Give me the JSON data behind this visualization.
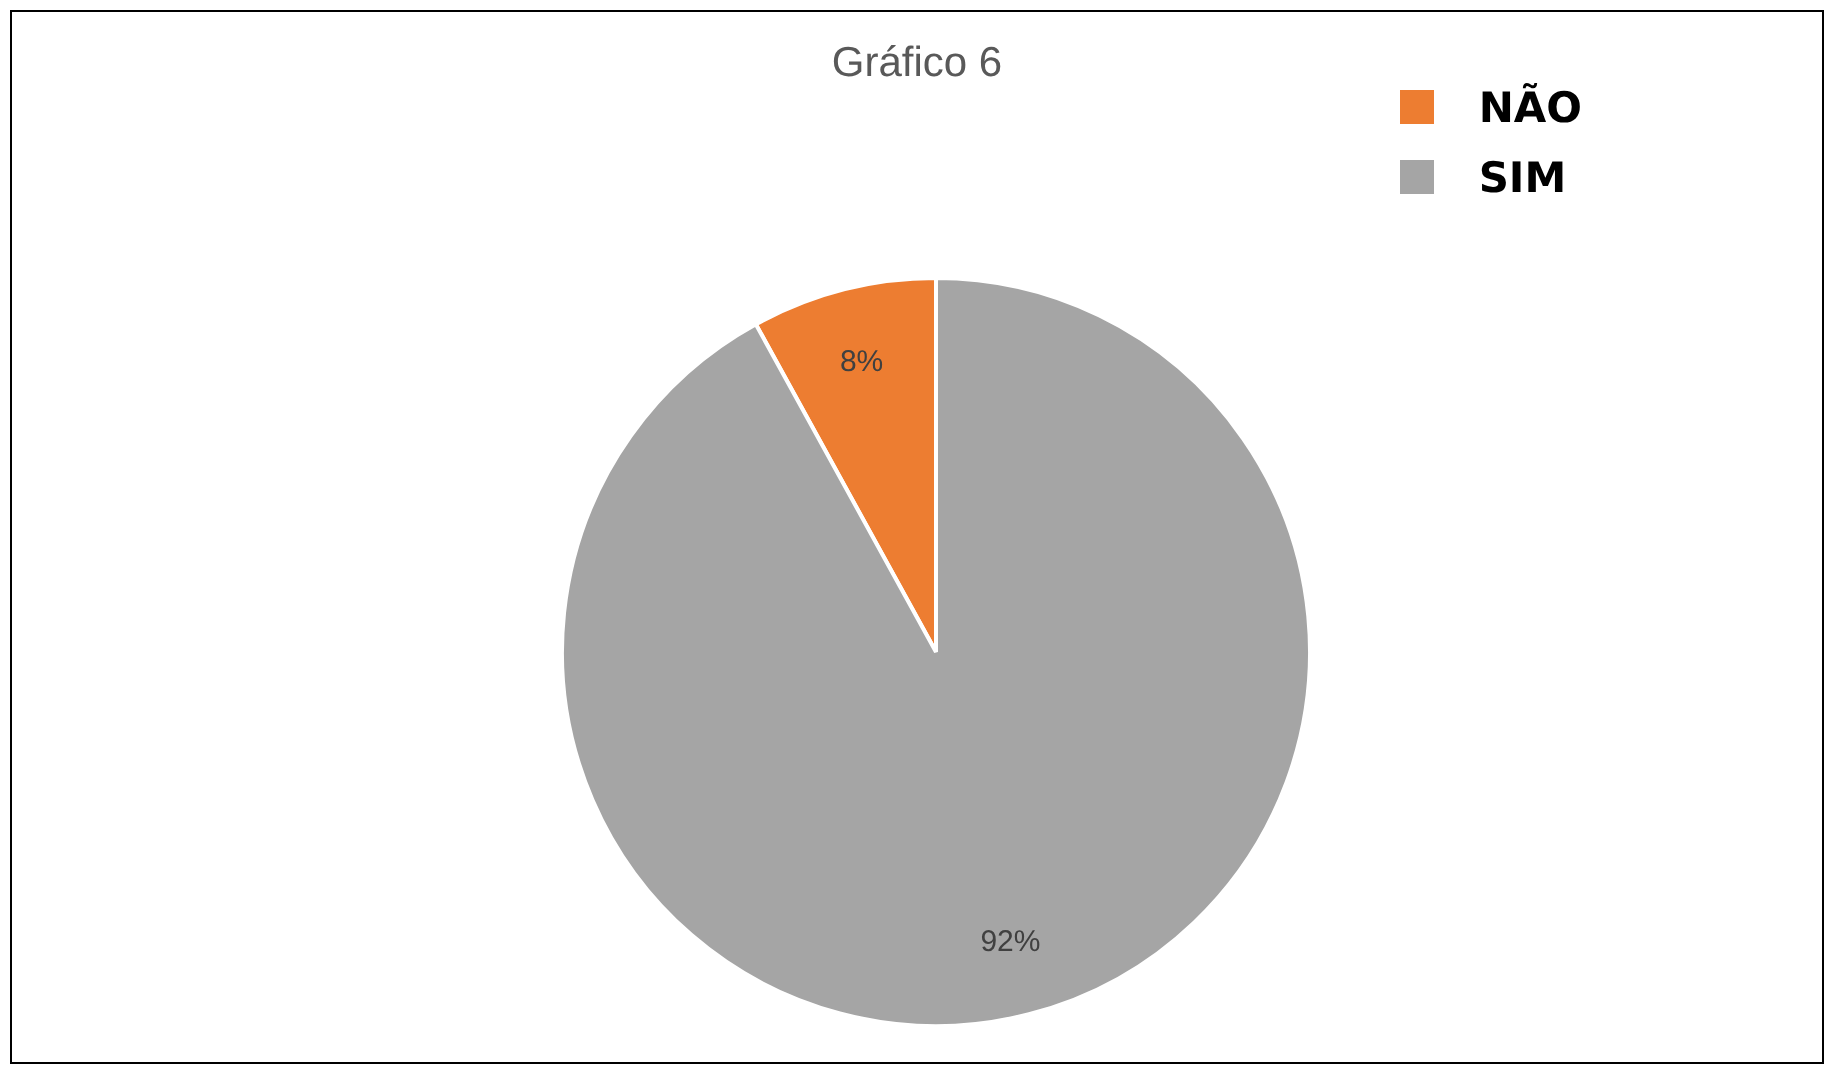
{
  "chart_data": {
    "type": "pie",
    "title": "Gráfico 6",
    "categories": [
      "NÃO",
      "SIM"
    ],
    "values": [
      8,
      92
    ],
    "colors": [
      "#ed7d31",
      "#a5a5a5"
    ],
    "value_labels": [
      "8%",
      "92%"
    ],
    "legend": "top right"
  }
}
